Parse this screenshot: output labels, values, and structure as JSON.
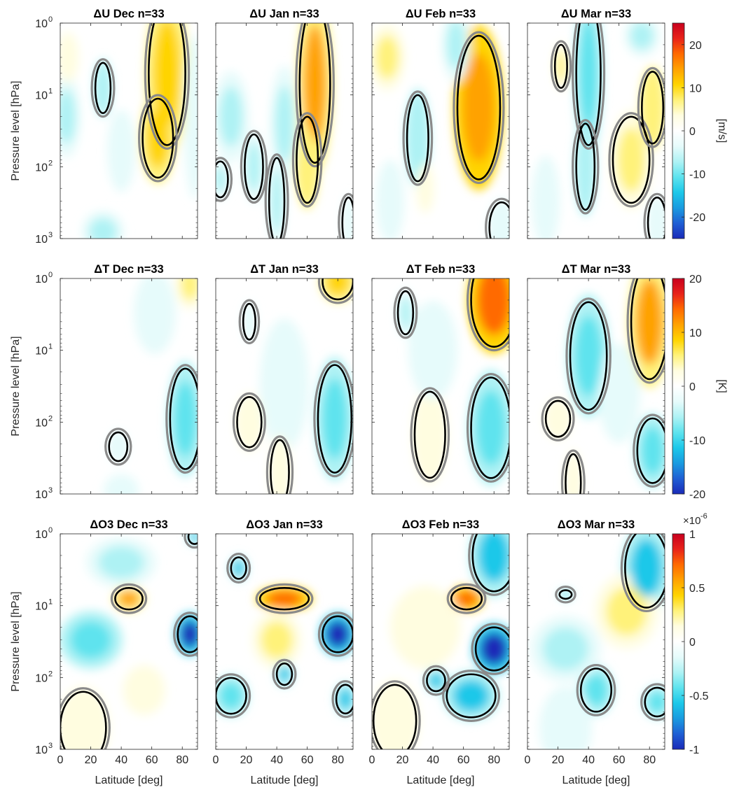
{
  "colors": {
    "pos_scale": [
      "#fffde0",
      "#fff27a",
      "#ffd400",
      "#ffa200",
      "#ff6a00",
      "#e8231a",
      "#c8001e"
    ],
    "neg_scale": [
      "#e6fbfb",
      "#aef2f4",
      "#5ee3ee",
      "#1cc8e9",
      "#1a9be0",
      "#1f5fd4",
      "#1a2ab8"
    ],
    "grey_contour": "#8a8a8a",
    "black_contour": "#000000"
  },
  "shared": {
    "ylabel": "Pressure level [hPa]",
    "xlabel": "Latitude [deg]",
    "x_ticks": [
      "0",
      "20",
      "40",
      "60",
      "80"
    ],
    "y_ticks": [
      {
        "base": "10",
        "exp": "0"
      },
      {
        "base": "10",
        "exp": "1"
      },
      {
        "base": "10",
        "exp": "2"
      },
      {
        "base": "10",
        "exp": "3"
      }
    ]
  },
  "chart_data": [
    {
      "type": "heatmap",
      "variable": "U",
      "panels": [
        {
          "title": "ΔU Dec n=33",
          "month": "Dec",
          "n": 33
        },
        {
          "title": "ΔU Jan n=33",
          "month": "Jan",
          "n": 33
        },
        {
          "title": "ΔU Feb n=33",
          "month": "Feb",
          "n": 33
        },
        {
          "title": "ΔU Mar n=33",
          "month": "Mar",
          "n": 33
        }
      ],
      "x_range": [
        0,
        90
      ],
      "y_range_hpa": [
        1,
        1000
      ],
      "y_scale": "log",
      "y_reversed": true,
      "colorbar": {
        "label": "[m/s]",
        "range": [
          -25,
          25
        ],
        "ticks": [
          "20",
          "10",
          "0",
          "-10",
          "-20"
        ],
        "tick_values": [
          20,
          10,
          0,
          -10,
          -20
        ],
        "multiplier": ""
      },
      "features": [
        [
          {
            "lat": 70,
            "p": 5,
            "rx": 12,
            "ry": 1.0,
            "v": 9,
            "sig": true
          },
          {
            "lat": 64,
            "p": 40,
            "rx": 10,
            "ry": 0.55,
            "v": 7,
            "sig": true
          },
          {
            "lat": 28,
            "p": 8,
            "rx": 5,
            "ry": 0.35,
            "v": -6,
            "sig": true
          },
          {
            "lat": 4,
            "p": 20,
            "rx": 8,
            "ry": 0.5,
            "v": -4,
            "sig": false
          },
          {
            "lat": 5,
            "p": 3,
            "rx": 6,
            "ry": 0.3,
            "v": 3,
            "sig": false
          },
          {
            "lat": 40,
            "p": 60,
            "rx": 8,
            "ry": 0.5,
            "v": -2,
            "sig": false
          },
          {
            "lat": 28,
            "p": 800,
            "rx": 12,
            "ry": 0.25,
            "v": -4,
            "sig": false
          },
          {
            "lat": 88,
            "p": 20,
            "rx": 6,
            "ry": 1.0,
            "v": -2,
            "sig": false
          }
        ],
        [
          {
            "lat": 65,
            "p": 7,
            "rx": 10,
            "ry": 1.1,
            "v": 10,
            "sig": true
          },
          {
            "lat": 60,
            "p": 80,
            "rx": 7,
            "ry": 0.6,
            "v": 6,
            "sig": true
          },
          {
            "lat": 25,
            "p": 100,
            "rx": 6,
            "ry": 0.45,
            "v": -5,
            "sig": true
          },
          {
            "lat": 10,
            "p": 20,
            "rx": 10,
            "ry": 0.55,
            "v": -5,
            "sig": false
          },
          {
            "lat": 45,
            "p": 25,
            "rx": 8,
            "ry": 0.7,
            "v": -4,
            "sig": false
          },
          {
            "lat": 3,
            "p": 150,
            "rx": 5,
            "ry": 0.25,
            "v": -5,
            "sig": true
          },
          {
            "lat": 40,
            "p": 300,
            "rx": 5,
            "ry": 0.6,
            "v": -4,
            "sig": true
          },
          {
            "lat": 87,
            "p": 600,
            "rx": 4,
            "ry": 0.35,
            "v": -3,
            "sig": true
          }
        ],
        [
          {
            "lat": 70,
            "p": 15,
            "rx": 14,
            "ry": 1.0,
            "v": 12,
            "sig": true
          },
          {
            "lat": 55,
            "p": 2,
            "rx": 8,
            "ry": 0.45,
            "v": -5,
            "sig": false
          },
          {
            "lat": 30,
            "p": 40,
            "rx": 7,
            "ry": 0.6,
            "v": -6,
            "sig": true
          },
          {
            "lat": 10,
            "p": 3,
            "rx": 10,
            "ry": 0.4,
            "v": 4,
            "sig": false
          },
          {
            "lat": 12,
            "p": 300,
            "rx": 8,
            "ry": 0.5,
            "v": -3,
            "sig": false
          },
          {
            "lat": 85,
            "p": 700,
            "rx": 8,
            "ry": 0.35,
            "v": -3,
            "sig": true
          },
          {
            "lat": 35,
            "p": 200,
            "rx": 5,
            "ry": 0.3,
            "v": 2,
            "sig": false
          }
        ],
        [
          {
            "lat": 40,
            "p": 5,
            "rx": 8,
            "ry": 1.0,
            "v": -8,
            "sig": true
          },
          {
            "lat": 38,
            "p": 100,
            "rx": 6,
            "ry": 0.6,
            "v": -6,
            "sig": true
          },
          {
            "lat": 68,
            "p": 80,
            "rx": 12,
            "ry": 0.6,
            "v": 5,
            "sig": true
          },
          {
            "lat": 82,
            "p": 15,
            "rx": 7,
            "ry": 0.5,
            "v": 6,
            "sig": true
          },
          {
            "lat": 22,
            "p": 4,
            "rx": 4,
            "ry": 0.3,
            "v": 4,
            "sig": true
          },
          {
            "lat": 12,
            "p": 300,
            "rx": 8,
            "ry": 0.55,
            "v": -3,
            "sig": false
          },
          {
            "lat": 75,
            "p": 1.5,
            "rx": 10,
            "ry": 0.25,
            "v": -5,
            "sig": false
          },
          {
            "lat": 85,
            "p": 600,
            "rx": 6,
            "ry": 0.35,
            "v": -3,
            "sig": true
          }
        ]
      ]
    },
    {
      "type": "heatmap",
      "variable": "T",
      "panels": [
        {
          "title": "ΔT Dec n=33",
          "month": "Dec",
          "n": 33
        },
        {
          "title": "ΔT Jan n=33",
          "month": "Jan",
          "n": 33
        },
        {
          "title": "ΔT Feb n=33",
          "month": "Feb",
          "n": 33
        },
        {
          "title": "ΔT Mar n=33",
          "month": "Mar",
          "n": 33
        }
      ],
      "x_range": [
        0,
        90
      ],
      "y_range_hpa": [
        1,
        1000
      ],
      "y_scale": "log",
      "y_reversed": true,
      "colorbar": {
        "label": "[K]",
        "range": [
          -20,
          20
        ],
        "ticks": [
          "20",
          "10",
          "0",
          "-10",
          "-20"
        ],
        "tick_values": [
          20,
          10,
          0,
          -10,
          -20
        ],
        "multiplier": ""
      },
      "features": [
        [
          {
            "lat": 82,
            "p": 90,
            "rx": 10,
            "ry": 0.7,
            "v": -6,
            "sig": true
          },
          {
            "lat": 85,
            "p": 1.2,
            "rx": 8,
            "ry": 0.3,
            "v": 4,
            "sig": false
          },
          {
            "lat": 62,
            "p": 3,
            "rx": 12,
            "ry": 0.5,
            "v": -2,
            "sig": false
          },
          {
            "lat": 38,
            "p": 220,
            "rx": 6,
            "ry": 0.2,
            "v": -2,
            "sig": true
          },
          {
            "lat": 40,
            "p": 900,
            "rx": 10,
            "ry": 0.2,
            "v": -2,
            "sig": false
          }
        ],
        [
          {
            "lat": 80,
            "p": 1.1,
            "rx": 10,
            "ry": 0.25,
            "v": 7,
            "sig": true
          },
          {
            "lat": 78,
            "p": 90,
            "rx": 11,
            "ry": 0.75,
            "v": -7,
            "sig": true
          },
          {
            "lat": 45,
            "p": 30,
            "rx": 14,
            "ry": 0.8,
            "v": -2,
            "sig": false
          },
          {
            "lat": 22,
            "p": 100,
            "rx": 8,
            "ry": 0.35,
            "v": 0.5,
            "sig": true
          },
          {
            "lat": 42,
            "p": 500,
            "rx": 6,
            "ry": 0.45,
            "v": 0.5,
            "sig": true
          },
          {
            "lat": 22,
            "p": 4,
            "rx": 4,
            "ry": 0.25,
            "v": -2,
            "sig": true
          }
        ],
        [
          {
            "lat": 80,
            "p": 2,
            "rx": 15,
            "ry": 0.65,
            "v": 12,
            "sig": true
          },
          {
            "lat": 78,
            "p": 120,
            "rx": 13,
            "ry": 0.7,
            "v": -7,
            "sig": true
          },
          {
            "lat": 38,
            "p": 150,
            "rx": 10,
            "ry": 0.6,
            "v": 1,
            "sig": true
          },
          {
            "lat": 40,
            "p": 10,
            "rx": 14,
            "ry": 0.6,
            "v": -2,
            "sig": false
          },
          {
            "lat": 22,
            "p": 3,
            "rx": 5,
            "ry": 0.3,
            "v": -3,
            "sig": true
          }
        ],
        [
          {
            "lat": 80,
            "p": 4,
            "rx": 12,
            "ry": 0.8,
            "v": 9,
            "sig": true
          },
          {
            "lat": 40,
            "p": 12,
            "rx": 12,
            "ry": 0.75,
            "v": -5,
            "sig": true
          },
          {
            "lat": 82,
            "p": 250,
            "rx": 10,
            "ry": 0.45,
            "v": -6,
            "sig": true
          },
          {
            "lat": 20,
            "p": 90,
            "rx": 8,
            "ry": 0.25,
            "v": 0.5,
            "sig": true
          },
          {
            "lat": 30,
            "p": 700,
            "rx": 5,
            "ry": 0.4,
            "v": 0.5,
            "sig": true
          },
          {
            "lat": 60,
            "p": 40,
            "rx": 12,
            "ry": 0.6,
            "v": -2,
            "sig": false
          }
        ]
      ]
    },
    {
      "type": "heatmap",
      "variable": "O3",
      "panels": [
        {
          "title": "ΔO3 Dec n=33",
          "month": "Dec",
          "n": 33
        },
        {
          "title": "ΔO3 Jan n=33",
          "month": "Jan",
          "n": 33
        },
        {
          "title": "ΔO3 Feb n=33",
          "month": "Feb",
          "n": 33
        },
        {
          "title": "ΔO3 Mar n=33",
          "month": "Mar",
          "n": 33
        }
      ],
      "x_range": [
        0,
        90
      ],
      "y_range_hpa": [
        1,
        1000
      ],
      "y_scale": "log",
      "y_reversed": true,
      "colorbar": {
        "label": "",
        "range": [
          -1,
          1
        ],
        "ticks": [
          "1",
          "0.5",
          "0",
          "-0.5",
          "-1"
        ],
        "tick_values": [
          1,
          0.5,
          0,
          -0.5,
          -1
        ],
        "multiplier": "×10",
        "multiplier_exp": "-6"
      },
      "features": [
        [
          {
            "lat": 45,
            "p": 8,
            "rx": 9,
            "ry": 0.15,
            "v": 0.45,
            "sig": true
          },
          {
            "lat": 85,
            "p": 25,
            "rx": 8,
            "ry": 0.25,
            "v": -0.8,
            "sig": true
          },
          {
            "lat": 20,
            "p": 30,
            "rx": 18,
            "ry": 0.35,
            "v": -0.25,
            "sig": false
          },
          {
            "lat": 15,
            "p": 500,
            "rx": 15,
            "ry": 0.5,
            "v": 0.02,
            "sig": true
          },
          {
            "lat": 40,
            "p": 2.5,
            "rx": 20,
            "ry": 0.3,
            "v": -0.15,
            "sig": false
          },
          {
            "lat": 88,
            "p": 1.1,
            "rx": 4,
            "ry": 0.1,
            "v": -0.4,
            "sig": true
          },
          {
            "lat": 55,
            "p": 150,
            "rx": 12,
            "ry": 0.3,
            "v": 0.1,
            "sig": false
          }
        ],
        [
          {
            "lat": 45,
            "p": 8,
            "rx": 16,
            "ry": 0.15,
            "v": 0.5,
            "sig": true
          },
          {
            "lat": 80,
            "p": 25,
            "rx": 10,
            "ry": 0.25,
            "v": -0.8,
            "sig": true
          },
          {
            "lat": 15,
            "p": 3,
            "rx": 5,
            "ry": 0.15,
            "v": -0.4,
            "sig": true
          },
          {
            "lat": 40,
            "p": 30,
            "rx": 14,
            "ry": 0.35,
            "v": 0.2,
            "sig": false
          },
          {
            "lat": 45,
            "p": 90,
            "rx": 5,
            "ry": 0.15,
            "v": -0.4,
            "sig": true
          },
          {
            "lat": 85,
            "p": 200,
            "rx": 6,
            "ry": 0.2,
            "v": -0.4,
            "sig": true
          },
          {
            "lat": 10,
            "p": 180,
            "rx": 10,
            "ry": 0.25,
            "v": -0.3,
            "sig": true
          }
        ],
        [
          {
            "lat": 80,
            "p": 2,
            "rx": 14,
            "ry": 0.5,
            "v": -0.4,
            "sig": true
          },
          {
            "lat": 62,
            "p": 8,
            "rx": 10,
            "ry": 0.15,
            "v": 0.5,
            "sig": true
          },
          {
            "lat": 80,
            "p": 40,
            "rx": 12,
            "ry": 0.3,
            "v": -0.8,
            "sig": true
          },
          {
            "lat": 65,
            "p": 180,
            "rx": 16,
            "ry": 0.3,
            "v": -0.4,
            "sig": true
          },
          {
            "lat": 15,
            "p": 400,
            "rx": 14,
            "ry": 0.5,
            "v": 0.02,
            "sig": true
          },
          {
            "lat": 35,
            "p": 20,
            "rx": 20,
            "ry": 0.5,
            "v": 0.1,
            "sig": false
          },
          {
            "lat": 42,
            "p": 110,
            "rx": 6,
            "ry": 0.15,
            "v": -0.4,
            "sig": true
          }
        ],
        [
          {
            "lat": 78,
            "p": 3,
            "rx": 14,
            "ry": 0.55,
            "v": -0.4,
            "sig": true
          },
          {
            "lat": 65,
            "p": 12,
            "rx": 18,
            "ry": 0.45,
            "v": 0.2,
            "sig": false
          },
          {
            "lat": 45,
            "p": 150,
            "rx": 10,
            "ry": 0.3,
            "v": -0.35,
            "sig": true
          },
          {
            "lat": 85,
            "p": 220,
            "rx": 8,
            "ry": 0.2,
            "v": -0.35,
            "sig": true
          },
          {
            "lat": 25,
            "p": 7,
            "rx": 4,
            "ry": 0.06,
            "v": -0.3,
            "sig": true
          },
          {
            "lat": 25,
            "p": 40,
            "rx": 20,
            "ry": 0.4,
            "v": -0.15,
            "sig": false
          },
          {
            "lat": 25,
            "p": 500,
            "rx": 15,
            "ry": 0.5,
            "v": -0.1,
            "sig": false
          }
        ]
      ]
    }
  ]
}
